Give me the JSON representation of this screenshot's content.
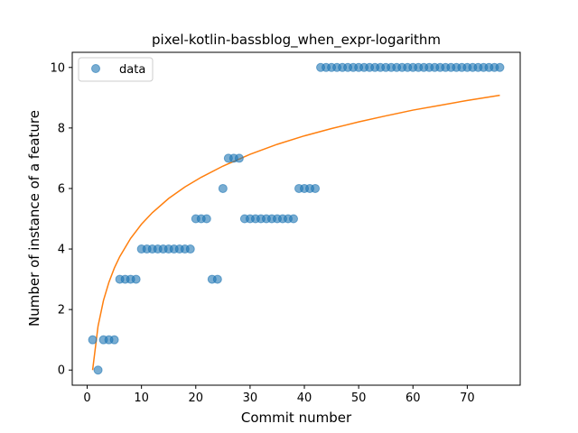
{
  "chart_data": {
    "type": "scatter",
    "title": "pixel-kotlin-bassblog_when_expr-logarithm",
    "xlabel": "Commit number",
    "ylabel": "Number of instance of a feature",
    "xlim": [
      -2.75,
      79.75
    ],
    "ylim": [
      -0.5,
      10.5
    ],
    "xticks": [
      0,
      10,
      20,
      30,
      40,
      50,
      60,
      70
    ],
    "yticks": [
      0,
      2,
      4,
      6,
      8,
      10
    ],
    "grid": false,
    "legend": {
      "position": "top-left",
      "entries": [
        "data"
      ]
    },
    "colors": {
      "scatter": "#1f77b4",
      "fit": "#ff7f0e"
    },
    "series": [
      {
        "name": "data",
        "kind": "scatter",
        "x": [
          1,
          2,
          3,
          4,
          5,
          6,
          7,
          8,
          9,
          10,
          11,
          12,
          13,
          14,
          15,
          16,
          17,
          18,
          19,
          20,
          21,
          22,
          23,
          24,
          25,
          26,
          27,
          28,
          29,
          30,
          31,
          32,
          33,
          34,
          35,
          36,
          37,
          38,
          39,
          40,
          41,
          42,
          43,
          44,
          45,
          46,
          47,
          48,
          49,
          50,
          51,
          52,
          53,
          54,
          55,
          56,
          57,
          58,
          59,
          60,
          61,
          62,
          63,
          64,
          65,
          66,
          67,
          68,
          69,
          70,
          71,
          72,
          73,
          74,
          75,
          76
        ],
        "y": [
          1,
          0,
          1,
          1,
          1,
          3,
          3,
          3,
          3,
          4,
          4,
          4,
          4,
          4,
          4,
          4,
          4,
          4,
          4,
          5,
          5,
          5,
          3,
          3,
          6,
          7,
          7,
          7,
          5,
          5,
          5,
          5,
          5,
          5,
          5,
          5,
          5,
          5,
          6,
          6,
          6,
          6,
          10,
          10,
          10,
          10,
          10,
          10,
          10,
          10,
          10,
          10,
          10,
          10,
          10,
          10,
          10,
          10,
          10,
          10,
          10,
          10,
          10,
          10,
          10,
          10,
          10,
          10,
          10,
          10,
          10,
          10,
          10,
          10,
          10,
          10
        ]
      },
      {
        "kind": "line",
        "x": [
          1,
          2,
          3,
          4,
          5,
          6,
          8,
          10,
          12,
          15,
          18,
          21,
          25,
          30,
          35,
          40,
          45,
          50,
          55,
          60,
          65,
          70,
          76
        ],
        "y": [
          0.0,
          1.45,
          2.3,
          2.9,
          3.37,
          3.75,
          4.35,
          4.82,
          5.2,
          5.67,
          6.05,
          6.37,
          6.74,
          7.13,
          7.46,
          7.74,
          7.98,
          8.2,
          8.4,
          8.59,
          8.75,
          8.91,
          9.08
        ]
      }
    ]
  }
}
